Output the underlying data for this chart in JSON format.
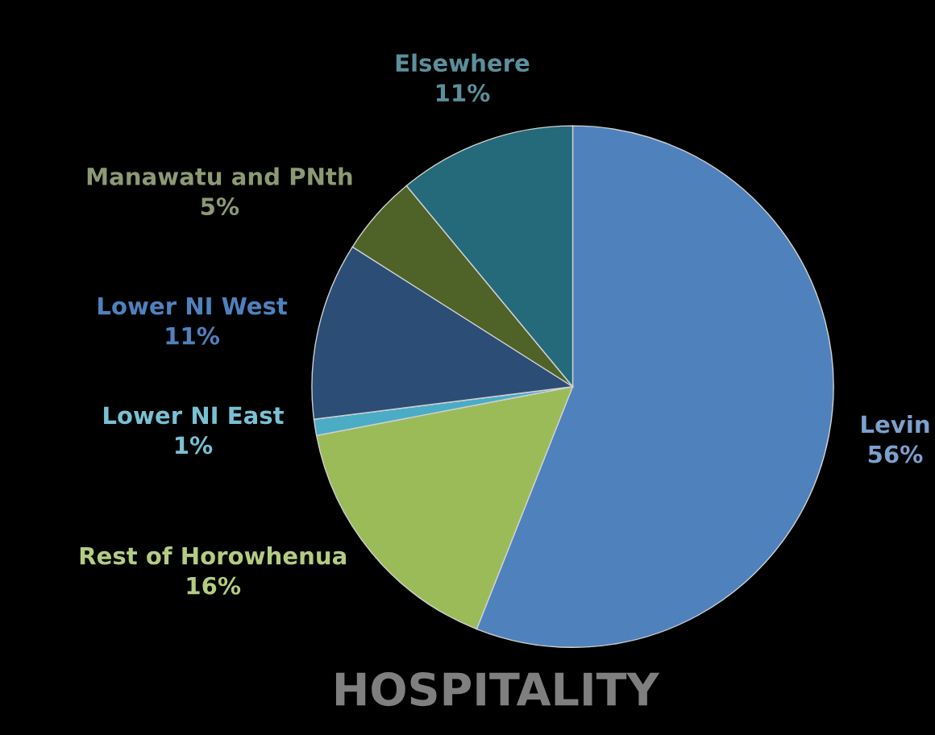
{
  "chart_data": {
    "type": "pie",
    "title": "HOSPITALITY",
    "categories": [
      "Levin",
      "Rest of Horowhenua",
      "Lower NI East",
      "Lower NI West",
      "Manawatu and PNth",
      "Elsewhere"
    ],
    "values": [
      56,
      16,
      1,
      11,
      5,
      11
    ],
    "colors": [
      "#4f81bd",
      "#9bbb59",
      "#4bacc6",
      "#2c4d75",
      "#4f6228",
      "#256a7a"
    ],
    "value_labels": [
      "56%",
      "16%",
      "1%",
      "11%",
      "5%",
      "11%"
    ],
    "legend": false
  }
}
